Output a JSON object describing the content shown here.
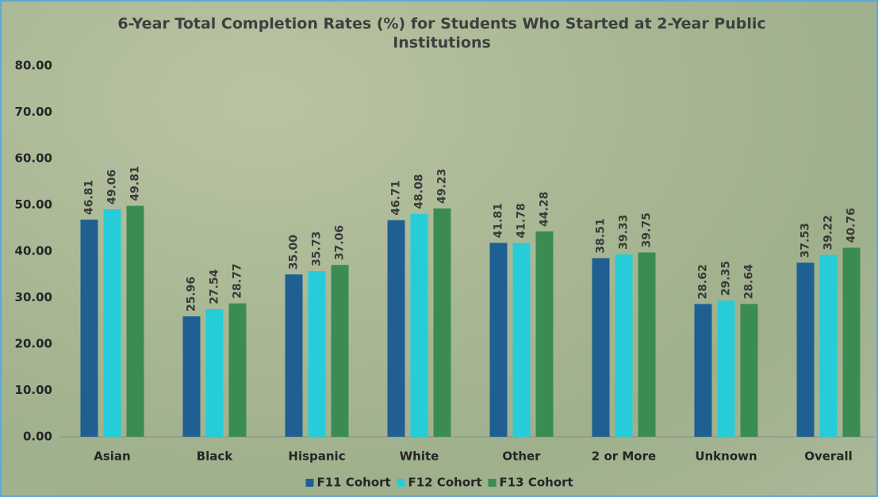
{
  "chart_data": {
    "type": "bar",
    "title": "6-Year Total Completion Rates (%) for Students Who Started at 2-Year Public Institutions",
    "categories": [
      "Asian",
      "Black",
      "Hispanic",
      "White",
      "Other",
      "2 or More",
      "Unknown",
      "Overall"
    ],
    "series": [
      {
        "name": "F11 Cohort",
        "color": "#1f5f92",
        "values": [
          46.81,
          25.96,
          35,
          46.71,
          41.81,
          38.51,
          28.62,
          37.53
        ],
        "value_labels": [
          "46.81",
          "25.96",
          "35.00",
          "46.71",
          "41.81",
          "38.51",
          "28.62",
          "37.53"
        ]
      },
      {
        "name": "F12 Cohort",
        "color": "#26cdd8",
        "values": [
          49.06,
          27.54,
          35.73,
          48.08,
          41.78,
          39.33,
          29.35,
          39.22
        ]
      },
      {
        "name": "F13 Cohort",
        "color": "#3b8c52",
        "values": [
          49.81,
          28.77,
          37.06,
          49.23,
          44.28,
          39.75,
          28.64,
          40.76
        ]
      }
    ],
    "ylim": [
      0,
      80
    ],
    "yticks": [
      {
        "value": 0,
        "label": "0.00"
      },
      {
        "value": 10,
        "label": "10.00"
      },
      {
        "value": 20,
        "label": "20.00"
      },
      {
        "value": 30,
        "label": "30.00"
      },
      {
        "value": 40,
        "label": "40.00"
      },
      {
        "value": 50,
        "label": "50.00"
      },
      {
        "value": 60,
        "label": "60.00"
      },
      {
        "value": 70,
        "label": "70.00"
      },
      {
        "value": 80,
        "label": "80.00"
      }
    ],
    "legend": "bottom"
  }
}
